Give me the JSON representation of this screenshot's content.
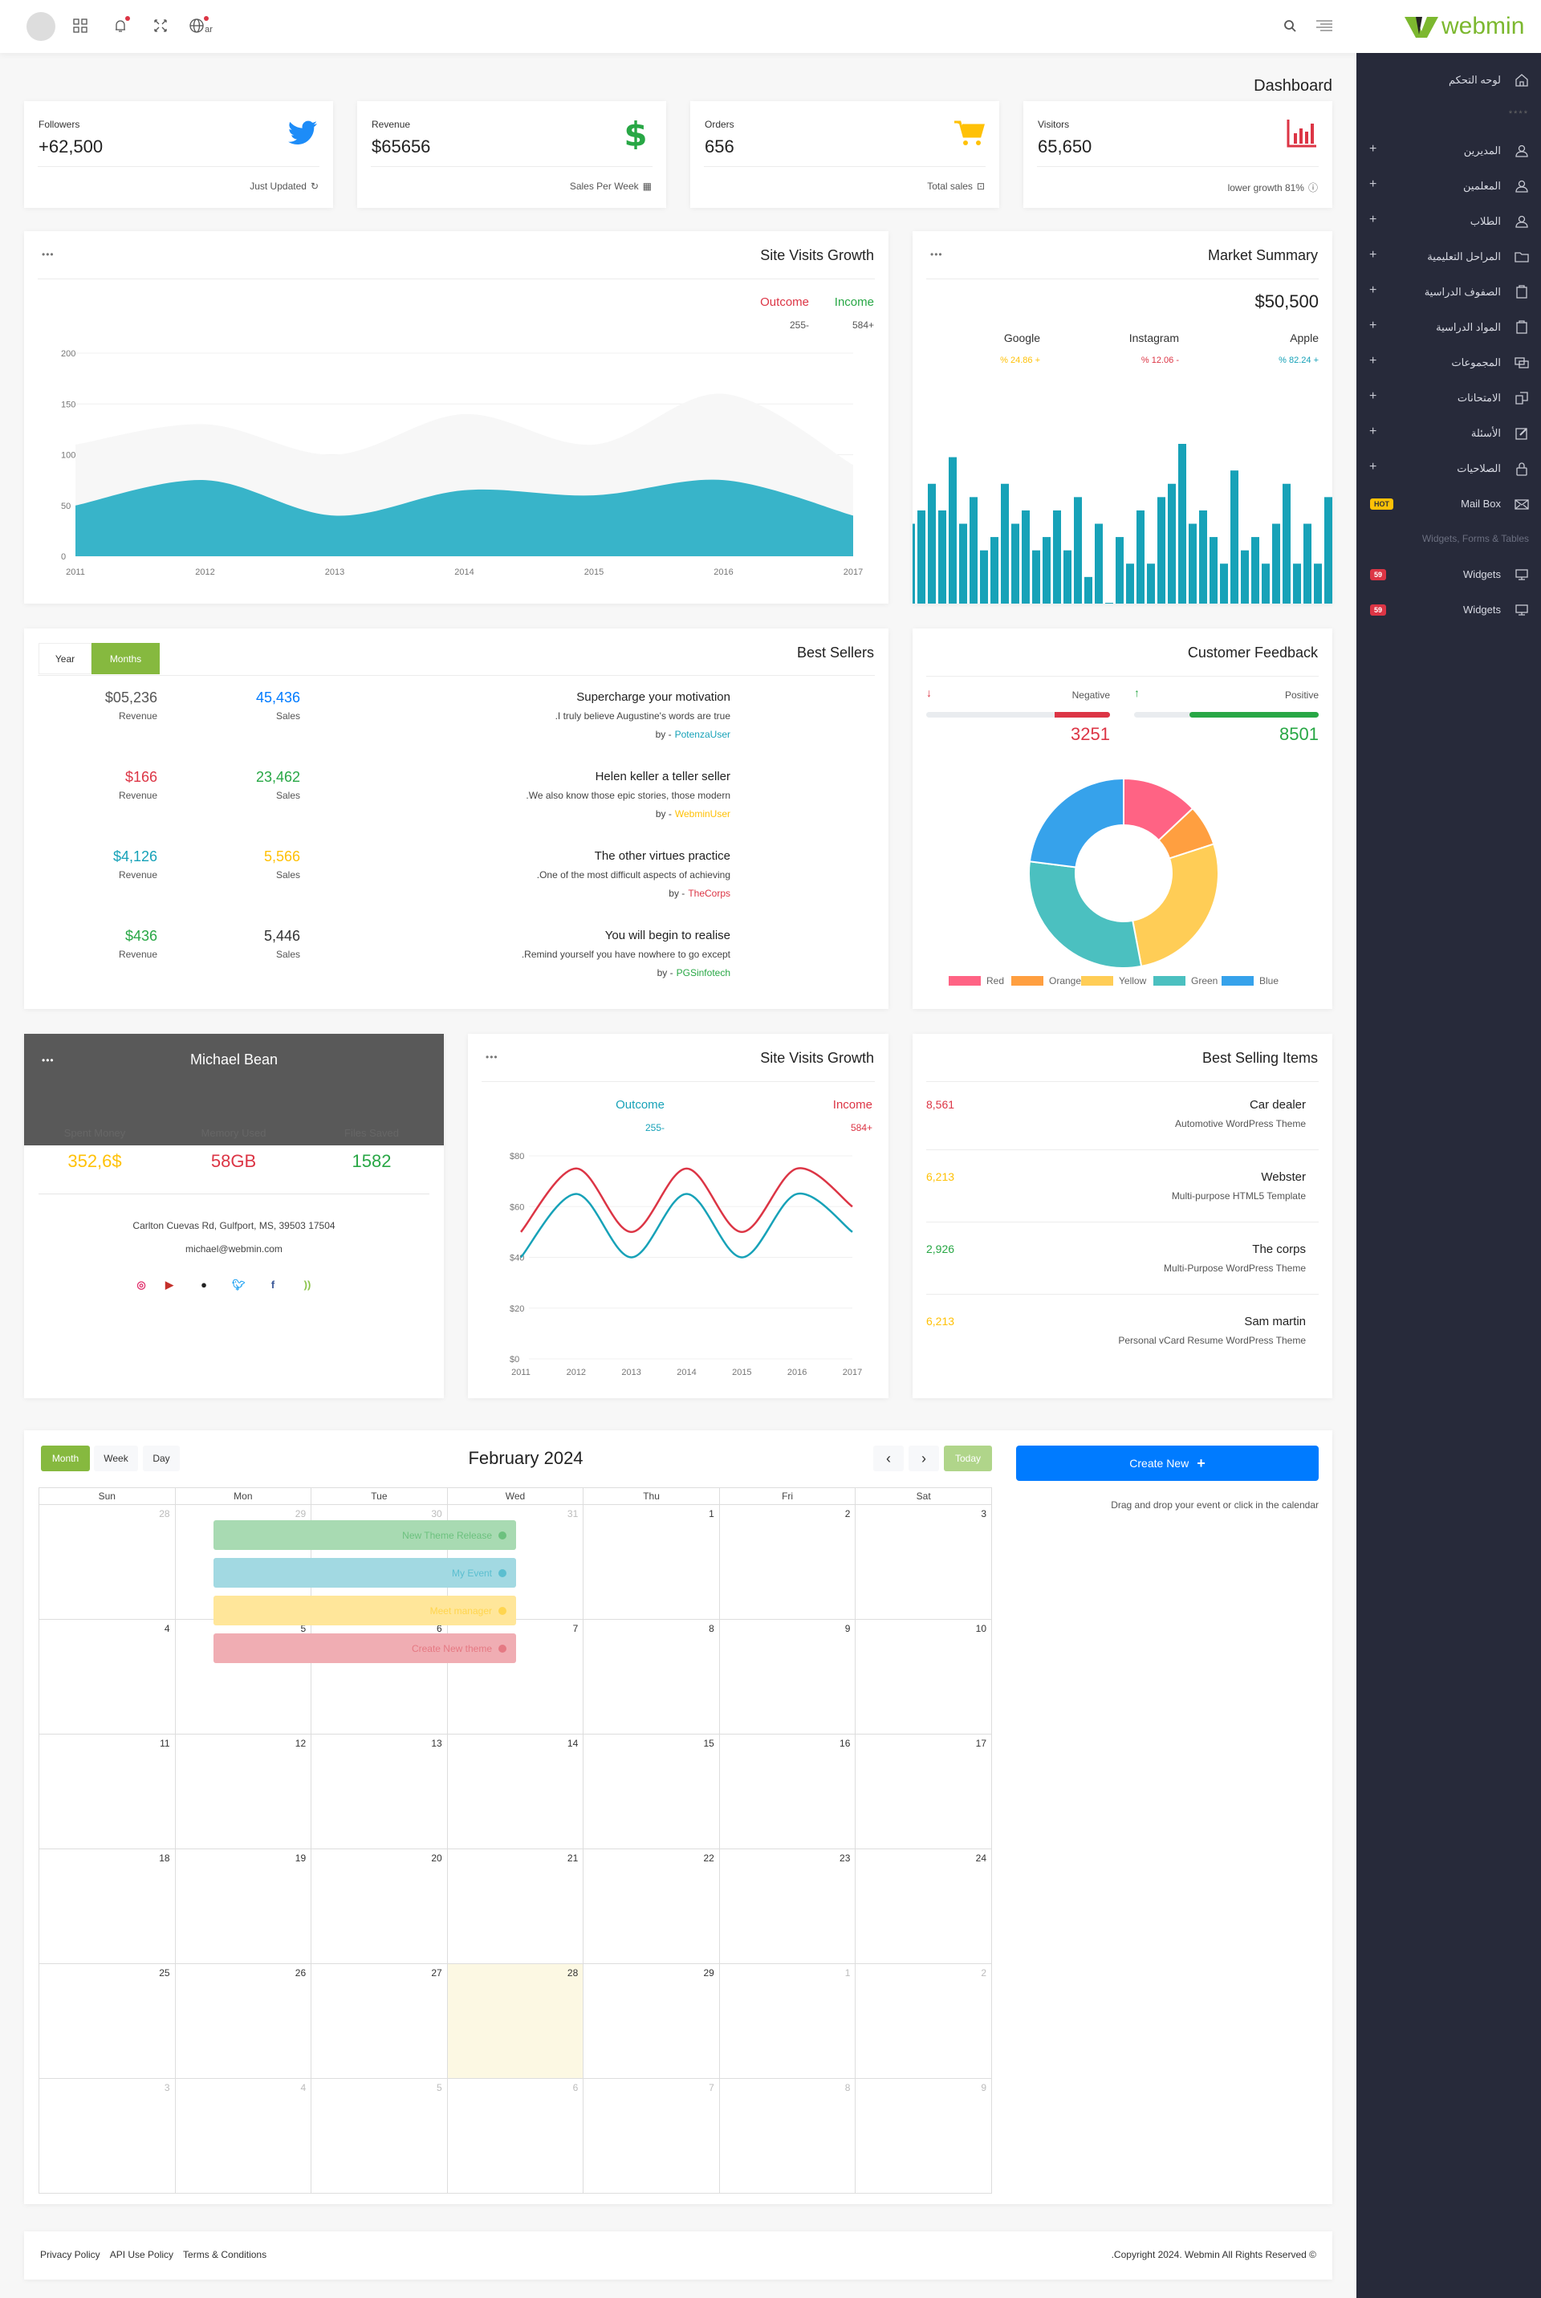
{
  "header": {
    "avatar_label": "",
    "lang": "ar",
    "logo": "webmin",
    "icons": [
      "apps-icon",
      "bell-icon",
      "fullscreen-icon",
      "globe-icon",
      "search-icon",
      "menu-icon"
    ]
  },
  "page_title": "Dashboard",
  "sidebar": {
    "items": [
      {
        "label": "لوحه التحكم",
        "icon": "home-icon",
        "plus": false
      },
      {
        "label": "****",
        "icon": "",
        "plus": false,
        "divider": true
      },
      {
        "label": "المديرين",
        "icon": "user-icon",
        "plus": true
      },
      {
        "label": "المعلمين",
        "icon": "user-icon",
        "plus": true
      },
      {
        "label": "الطلاب",
        "icon": "user-icon",
        "plus": true
      },
      {
        "label": "المراحل التعليمية",
        "icon": "folder-icon",
        "plus": true
      },
      {
        "label": "الصفوف الدراسية",
        "icon": "clipboard-icon",
        "plus": true
      },
      {
        "label": "المواد الدراسية",
        "icon": "clipboard-icon",
        "plus": true
      },
      {
        "label": "المجموعات",
        "icon": "monitor-stack-icon",
        "plus": true
      },
      {
        "label": "الامتحانات",
        "icon": "copy-icon",
        "plus": true
      },
      {
        "label": "الأسئلة",
        "icon": "edit-icon",
        "plus": true
      },
      {
        "label": "الصلاحيات",
        "icon": "lock-icon",
        "plus": true
      },
      {
        "label": "Mail Box",
        "icon": "mail-icon",
        "plus": false,
        "badge": "HOT",
        "badge_color": "#ffc107"
      },
      {
        "label": "Widgets, Forms & Tables",
        "icon": "",
        "plus": false,
        "section": true
      },
      {
        "label": "Widgets",
        "icon": "monitor-icon",
        "plus": false,
        "badge": "59",
        "badge_color": "#dc3545"
      },
      {
        "label": "Widgets",
        "icon": "monitor-icon",
        "plus": false,
        "badge": "59",
        "badge_color": "#dc3545"
      }
    ]
  },
  "stats": [
    {
      "label": "Followers",
      "value": "+62,500",
      "footer": "Just Updated",
      "icon": "twitter-icon",
      "footer_icon": "refresh-icon",
      "color": "#1d8cf8"
    },
    {
      "label": "Revenue",
      "value": "$65656",
      "footer": "Sales Per Week",
      "icon": "dollar-icon",
      "footer_icon": "calendar-icon",
      "color": "#28a745"
    },
    {
      "label": "Orders",
      "value": "656",
      "footer": "Total sales",
      "icon": "cart-icon",
      "footer_icon": "bookmark-icon",
      "color": "#ffc107"
    },
    {
      "label": "Visitors",
      "value": "65,650",
      "footer": "lower growth 81%",
      "icon": "bar-chart-icon",
      "footer_icon": "info-icon",
      "color": "#dc3545"
    }
  ],
  "site_visits": {
    "title": "Site Visits Growth",
    "menu": "•••",
    "legend": [
      {
        "label": "Outcome",
        "value": "255-",
        "color": "#dc3545"
      },
      {
        "label": "Income",
        "value": "584+",
        "color": "#28a745"
      }
    ]
  },
  "market": {
    "title": "Market Summary",
    "menu": "•••",
    "total": "$50,500",
    "items": [
      {
        "name": "Google",
        "change": "% 24.86 +",
        "color": "#ffc107"
      },
      {
        "name": "Instagram",
        "change": "% 12.06 -",
        "color": "#dc3545"
      },
      {
        "name": "Apple",
        "change": "% 82.24 +",
        "color": "#17a2b8"
      }
    ]
  },
  "best_sellers": {
    "title": "Best Sellers",
    "tabs": [
      "Year",
      "Months"
    ],
    "active_tab": "Months",
    "items": [
      {
        "revenue": "$05,236",
        "revenue_color": "#555",
        "sales": "45,436",
        "sales_color": "#007bff",
        "rev_label": "Revenue",
        "sales_label": "Sales",
        "title": "Supercharge your motivation",
        "text": ".I truly believe Augustine's words are true",
        "by": "by -",
        "author": "PotenzaUser",
        "author_color": "#17a2b8"
      },
      {
        "revenue": "$166",
        "revenue_color": "#dc3545",
        "sales": "23,462",
        "sales_color": "#28a745",
        "rev_label": "Revenue",
        "sales_label": "Sales",
        "title": "Helen keller a teller seller",
        "text": ".We also know those epic stories, those modern",
        "by": "by -",
        "author": "WebminUser",
        "author_color": "#ffc107"
      },
      {
        "revenue": "$4,126",
        "revenue_color": "#17a2b8",
        "sales": "5,566",
        "sales_color": "#ffc107",
        "rev_label": "Revenue",
        "sales_label": "Sales",
        "title": "The other virtues practice",
        "text": ".One of the most difficult aspects of achieving",
        "by": "by -",
        "author": "TheCorps",
        "author_color": "#dc3545"
      },
      {
        "revenue": "$436",
        "revenue_color": "#28a745",
        "sales": "5,446",
        "sales_color": "#333",
        "rev_label": "Revenue",
        "sales_label": "Sales",
        "title": "You will begin to realise",
        "text": ".Remind yourself you have nowhere to go except",
        "by": "by -",
        "author": "PGSinfotech",
        "author_color": "#28a745"
      }
    ]
  },
  "feedback": {
    "title": "Customer Feedback",
    "negative": {
      "label": "Negative",
      "value": "3251",
      "fill_percent": 30,
      "color": "#dc3545"
    },
    "positive": {
      "label": "Positive",
      "value": "8501",
      "fill_percent": 70,
      "color": "#28a745"
    }
  },
  "profile": {
    "name": "Michael Bean",
    "menu": "•••",
    "stats": [
      {
        "label": "Spent Money",
        "value": "352,6$",
        "color": "#ffc107"
      },
      {
        "label": "Memory Used",
        "value": "58GB",
        "color": "#dc3545"
      },
      {
        "label": "Files Saved",
        "value": "1582",
        "color": "#28a745"
      }
    ],
    "address": "Carlton Cuevas Rd, Gulfport, MS, 39503 17504",
    "email": "michael@webmin.com",
    "socials": [
      "instagram-icon",
      "youtube-icon",
      "github-icon",
      "twitter-icon",
      "facebook-icon",
      "rss-icon"
    ]
  },
  "site_visits_2": {
    "title": "Site Visits Growth",
    "menu": "•••",
    "legend": [
      {
        "label": "Outcome",
        "value": "255-",
        "color": "#17a2b8"
      },
      {
        "label": "Income",
        "value": "584+",
        "color": "#dc3545"
      }
    ]
  },
  "best_selling_items": {
    "title": "Best Selling Items",
    "items": [
      {
        "value": "8,561",
        "color": "#dc3545",
        "name": "Car dealer",
        "desc": "Automotive WordPress Theme"
      },
      {
        "value": "6,213",
        "color": "#ffc107",
        "name": "Webster",
        "desc": "Multi-purpose HTML5 Template"
      },
      {
        "value": "2,926",
        "color": "#28a745",
        "name": "The corps",
        "desc": "Multi-Purpose WordPress Theme"
      },
      {
        "value": "6,213",
        "color": "#ffc107",
        "name": "Sam martin",
        "desc": "Personal vCard Resume WordPress Theme"
      }
    ]
  },
  "calendar": {
    "title": "February 2024",
    "views": [
      "Month",
      "Week",
      "Day"
    ],
    "active_view": "Month",
    "prev": "‹",
    "next": "›",
    "today_label": "Today",
    "today": "28",
    "weekdays": [
      "Sun",
      "Mon",
      "Tue",
      "Wed",
      "Thu",
      "Fri",
      "Sat"
    ],
    "weeks": [
      [
        "28",
        "29",
        "30",
        "31",
        "1",
        "2",
        "3"
      ],
      [
        "4",
        "5",
        "6",
        "7",
        "8",
        "9",
        "10"
      ],
      [
        "11",
        "12",
        "13",
        "14",
        "15",
        "16",
        "17"
      ],
      [
        "18",
        "19",
        "20",
        "21",
        "22",
        "23",
        "24"
      ],
      [
        "25",
        "26",
        "27",
        "28",
        "29",
        "1",
        "2"
      ],
      [
        "3",
        "4",
        "5",
        "6",
        "7",
        "8",
        "9"
      ]
    ],
    "create_label": "Create New",
    "hint": "Drag and drop your event or click in the calendar",
    "events": [
      {
        "label": "New Theme Release",
        "bg": "#a8dab2",
        "fg": "#6cc17e"
      },
      {
        "label": "My Event",
        "bg": "#a2d9e2",
        "fg": "#5bbfd0"
      },
      {
        "label": "Meet manager",
        "bg": "#ffe69a",
        "fg": "#ffd54f"
      },
      {
        "label": "Create New theme",
        "bg": "#f0adb3",
        "fg": "#e57983"
      }
    ]
  },
  "footer": {
    "links": [
      "Privacy Policy",
      "API Use Policy",
      "Terms & Conditions"
    ],
    "copyright": ".Copyright 2024. Webmin All Rights Reserved ©"
  },
  "chart_data": [
    {
      "type": "area",
      "title": "Site Visits Growth",
      "categories": [
        "2011",
        "2012",
        "2013",
        "2014",
        "2015",
        "2016",
        "2017"
      ],
      "yticks": [
        "0",
        "50",
        "100",
        "150",
        "200"
      ],
      "ylim": [
        0,
        200
      ],
      "grid": true,
      "series": [
        {
          "values": [
            110,
            130,
            100,
            140,
            110,
            160,
            90
          ],
          "color": "#f7f7f7"
        },
        {
          "values": [
            50,
            75,
            40,
            65,
            60,
            75,
            40
          ],
          "color": "#38b4c9"
        }
      ]
    },
    {
      "type": "bar",
      "title": "Market Summary",
      "values": [
        6,
        7,
        9,
        7,
        11,
        6,
        8,
        4,
        5,
        9,
        6,
        7,
        4,
        5,
        7,
        4,
        8,
        2,
        6,
        0,
        5,
        3,
        7,
        3,
        8,
        9,
        12,
        6,
        7,
        5,
        3,
        10,
        4,
        5,
        3,
        6,
        9,
        3,
        6,
        3,
        8
      ],
      "color": "#17a2b8"
    },
    {
      "type": "pie",
      "title": "Customer Feedback",
      "categories": [
        "Red",
        "Orange",
        "Yellow",
        "Green",
        "Blue"
      ],
      "values": [
        13,
        7,
        27,
        30,
        23
      ],
      "colors": [
        "#ff6384",
        "#ff9f40",
        "#ffcd56",
        "#4bc0c0",
        "#36a2eb"
      ],
      "legend": "bottom"
    },
    {
      "type": "line",
      "title": "Site Visits Growth",
      "categories": [
        "2011",
        "2012",
        "2013",
        "2014",
        "2015",
        "2016",
        "2017"
      ],
      "yticks": [
        "$0",
        "$20",
        "$40",
        "$60",
        "$80"
      ],
      "ylim": [
        0,
        80
      ],
      "grid": true,
      "series": [
        {
          "name": "Income",
          "values": [
            50,
            75,
            50,
            75,
            50,
            75,
            60
          ],
          "color": "#dc3545"
        },
        {
          "name": "Outcome",
          "values": [
            40,
            65,
            40,
            65,
            40,
            65,
            50
          ],
          "color": "#17a2b8"
        }
      ]
    }
  ]
}
